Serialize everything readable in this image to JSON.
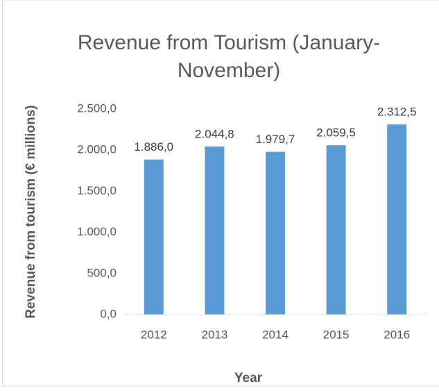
{
  "chart_data": {
    "type": "bar",
    "title": "Revenue from Tourism (January-November)",
    "x_label": "Year",
    "y_label": "Revenue from tourism (€ millions)",
    "categories": [
      "2012",
      "2013",
      "2014",
      "2015",
      "2016"
    ],
    "values": [
      1886.0,
      2044.8,
      1979.7,
      2059.5,
      2312.5
    ],
    "value_labels": [
      "1.886,0",
      "2.044,8",
      "1.979,7",
      "2.059,5",
      "2.312,5"
    ],
    "color": "#5b9bd5",
    "ylim": [
      0,
      2500
    ],
    "yticks": [
      {
        "value": 0,
        "label": "0,0"
      },
      {
        "value": 500,
        "label": "500,0"
      },
      {
        "value": 1000,
        "label": "1.000,0"
      },
      {
        "value": 1500,
        "label": "1.500,0"
      },
      {
        "value": 2000,
        "label": "2.000,0"
      },
      {
        "value": 2500,
        "label": "2.500,0"
      }
    ],
    "grid": false
  }
}
